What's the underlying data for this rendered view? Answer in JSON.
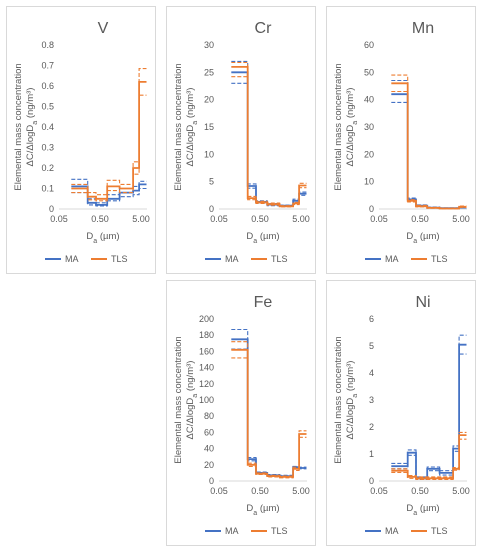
{
  "colors": {
    "MA": "#4472c4",
    "TLS": "#ed7d31"
  },
  "legend": {
    "MA": "MA",
    "TLS": "TLS"
  },
  "y_axis_label_line1": "Elemental mass concentration",
  "y_axis_label_line2": "ΔC/ΔlogD",
  "y_axis_label_sub": "a",
  "y_axis_label_unit": " (ng/m³)",
  "x_axis_label": "D",
  "x_axis_label_sub": "a",
  "x_axis_label_unit": " (µm)",
  "chart_data": [
    {
      "type": "line",
      "title": "V",
      "xscale": "log",
      "xlim": [
        0.05,
        7
      ],
      "xticks": [
        0.05,
        0.5,
        5
      ],
      "xtick_labels": [
        "0.05",
        "0.50",
        "5.00"
      ],
      "ylim": [
        0,
        0.8
      ],
      "yticks": [
        0,
        0.1,
        0.2,
        0.3,
        0.4,
        0.5,
        0.6,
        0.7,
        0.8
      ],
      "ytick_labels": [
        "0",
        "0.1",
        "0.2",
        "0.3",
        "0.4",
        "0.5",
        "0.6",
        "0.7",
        "0.8"
      ],
      "bin_edges": [
        0.1,
        0.25,
        0.4,
        0.75,
        1.5,
        3.2,
        4.5,
        6.8
      ],
      "series": [
        {
          "name": "MA",
          "values": [
            0.11,
            0.03,
            0.02,
            0.05,
            0.08,
            0.09,
            0.12
          ],
          "upper": [
            0.145,
            0.05,
            0.03,
            0.07,
            0.1,
            0.11,
            0.135
          ],
          "lower": [
            0.08,
            0.02,
            0.015,
            0.04,
            0.06,
            0.07,
            0.1
          ]
        },
        {
          "name": "TLS",
          "values": [
            0.1,
            0.06,
            0.05,
            0.11,
            0.1,
            0.2,
            0.62
          ],
          "upper": [
            0.12,
            0.08,
            0.07,
            0.14,
            0.12,
            0.23,
            0.685
          ],
          "lower": [
            0.08,
            0.045,
            0.04,
            0.09,
            0.08,
            0.17,
            0.555
          ]
        }
      ]
    },
    {
      "type": "line",
      "title": "Cr",
      "xscale": "log",
      "xlim": [
        0.05,
        7
      ],
      "xticks": [
        0.05,
        0.5,
        5
      ],
      "xtick_labels": [
        "0.05",
        "0.50",
        "5.00"
      ],
      "ylim": [
        0,
        30
      ],
      "yticks": [
        0,
        5,
        10,
        15,
        20,
        25,
        30
      ],
      "ytick_labels": [
        "0",
        "5",
        "10",
        "15",
        "20",
        "25",
        "30"
      ],
      "bin_edges": [
        0.1,
        0.25,
        0.4,
        0.75,
        1.5,
        3.2,
        4.5,
        6.8
      ],
      "series": [
        {
          "name": "MA",
          "values": [
            25,
            4.2,
            1.3,
            0.8,
            0.6,
            1.5,
            2.8
          ],
          "upper": [
            27,
            4.6,
            1.5,
            1.0,
            0.7,
            1.8,
            3.1
          ],
          "lower": [
            23,
            3.8,
            1.1,
            0.6,
            0.5,
            1.2,
            2.5
          ]
        },
        {
          "name": "TLS",
          "values": [
            26,
            2.0,
            1.2,
            0.9,
            0.5,
            1.0,
            4.3
          ],
          "upper": [
            26.8,
            2.3,
            1.4,
            1.1,
            0.6,
            1.2,
            4.7
          ],
          "lower": [
            24.2,
            1.7,
            1.0,
            0.7,
            0.4,
            0.8,
            3.9
          ]
        }
      ]
    },
    {
      "type": "line",
      "title": "Mn",
      "xscale": "log",
      "xlim": [
        0.05,
        7
      ],
      "xticks": [
        0.05,
        0.5,
        5
      ],
      "xtick_labels": [
        "0.05",
        "0.50",
        "5.00"
      ],
      "ylim": [
        0,
        60
      ],
      "yticks": [
        0,
        10,
        20,
        30,
        40,
        50,
        60
      ],
      "ytick_labels": [
        "0",
        "10",
        "20",
        "30",
        "40",
        "50",
        "60"
      ],
      "bin_edges": [
        0.1,
        0.25,
        0.4,
        0.75,
        1.5,
        3.2,
        4.5,
        6.8
      ],
      "series": [
        {
          "name": "MA",
          "values": [
            42,
            3.5,
            1.2,
            0.5,
            0.3,
            0.3,
            0.5
          ],
          "upper": [
            47,
            4.0,
            1.5,
            0.7,
            0.4,
            0.4,
            0.7
          ],
          "lower": [
            39,
            3.0,
            1.0,
            0.4,
            0.2,
            0.2,
            0.4
          ]
        },
        {
          "name": "TLS",
          "values": [
            46,
            3.0,
            1.0,
            0.4,
            0.2,
            0.2,
            0.8
          ],
          "upper": [
            49,
            3.4,
            1.3,
            0.6,
            0.3,
            0.3,
            1.1
          ],
          "lower": [
            43,
            2.6,
            0.8,
            0.3,
            0.1,
            0.1,
            0.6
          ]
        }
      ]
    },
    {
      "type": "line",
      "title": "Fe",
      "xscale": "log",
      "xlim": [
        0.05,
        7
      ],
      "xticks": [
        0.05,
        0.5,
        5
      ],
      "xtick_labels": [
        "0.05",
        "0.50",
        "5.00"
      ],
      "ylim": [
        0,
        200
      ],
      "yticks": [
        0,
        20,
        40,
        60,
        80,
        100,
        120,
        140,
        160,
        180,
        200
      ],
      "ytick_labels": [
        "0",
        "20",
        "40",
        "60",
        "80",
        "100",
        "120",
        "140",
        "160",
        "180",
        "200"
      ],
      "bin_edges": [
        0.1,
        0.25,
        0.4,
        0.75,
        1.5,
        3.2,
        4.5,
        6.8
      ],
      "series": [
        {
          "name": "MA",
          "values": [
            175,
            27,
            10,
            7,
            6,
            17,
            16
          ],
          "upper": [
            187,
            29,
            11,
            8,
            7,
            18,
            17
          ],
          "lower": [
            163,
            25,
            9,
            6,
            5,
            16,
            15
          ]
        },
        {
          "name": "TLS",
          "values": [
            162,
            20,
            9,
            6,
            5,
            15,
            58
          ],
          "upper": [
            172,
            22,
            10,
            7,
            6,
            17,
            62
          ],
          "lower": [
            152,
            18,
            8,
            5,
            4,
            13,
            54
          ]
        }
      ]
    },
    {
      "type": "line",
      "title": "Ni",
      "xscale": "log",
      "xlim": [
        0.05,
        7
      ],
      "xticks": [
        0.05,
        0.5,
        5
      ],
      "xtick_labels": [
        "0.05",
        "0.50",
        "5.00"
      ],
      "ylim": [
        0,
        6
      ],
      "yticks": [
        0,
        1,
        2,
        3,
        4,
        5,
        6
      ],
      "ytick_labels": [
        "0",
        "1",
        "2",
        "3",
        "4",
        "5",
        "6"
      ],
      "bin_edges": [
        0.1,
        0.25,
        0.4,
        0.75,
        1.5,
        3.2,
        4.5,
        6.8
      ],
      "series": [
        {
          "name": "MA",
          "values": [
            0.55,
            1.05,
            0.1,
            0.45,
            0.3,
            1.2,
            5.05
          ],
          "upper": [
            0.65,
            1.15,
            0.15,
            0.52,
            0.38,
            1.3,
            5.4
          ],
          "lower": [
            0.45,
            0.95,
            0.06,
            0.38,
            0.22,
            1.1,
            4.7
          ]
        },
        {
          "name": "TLS",
          "values": [
            0.38,
            0.15,
            0.1,
            0.1,
            0.1,
            0.45,
            1.7
          ],
          "upper": [
            0.45,
            0.2,
            0.15,
            0.15,
            0.15,
            0.5,
            1.8
          ],
          "lower": [
            0.32,
            0.1,
            0.06,
            0.06,
            0.06,
            0.4,
            1.55
          ]
        }
      ]
    }
  ]
}
